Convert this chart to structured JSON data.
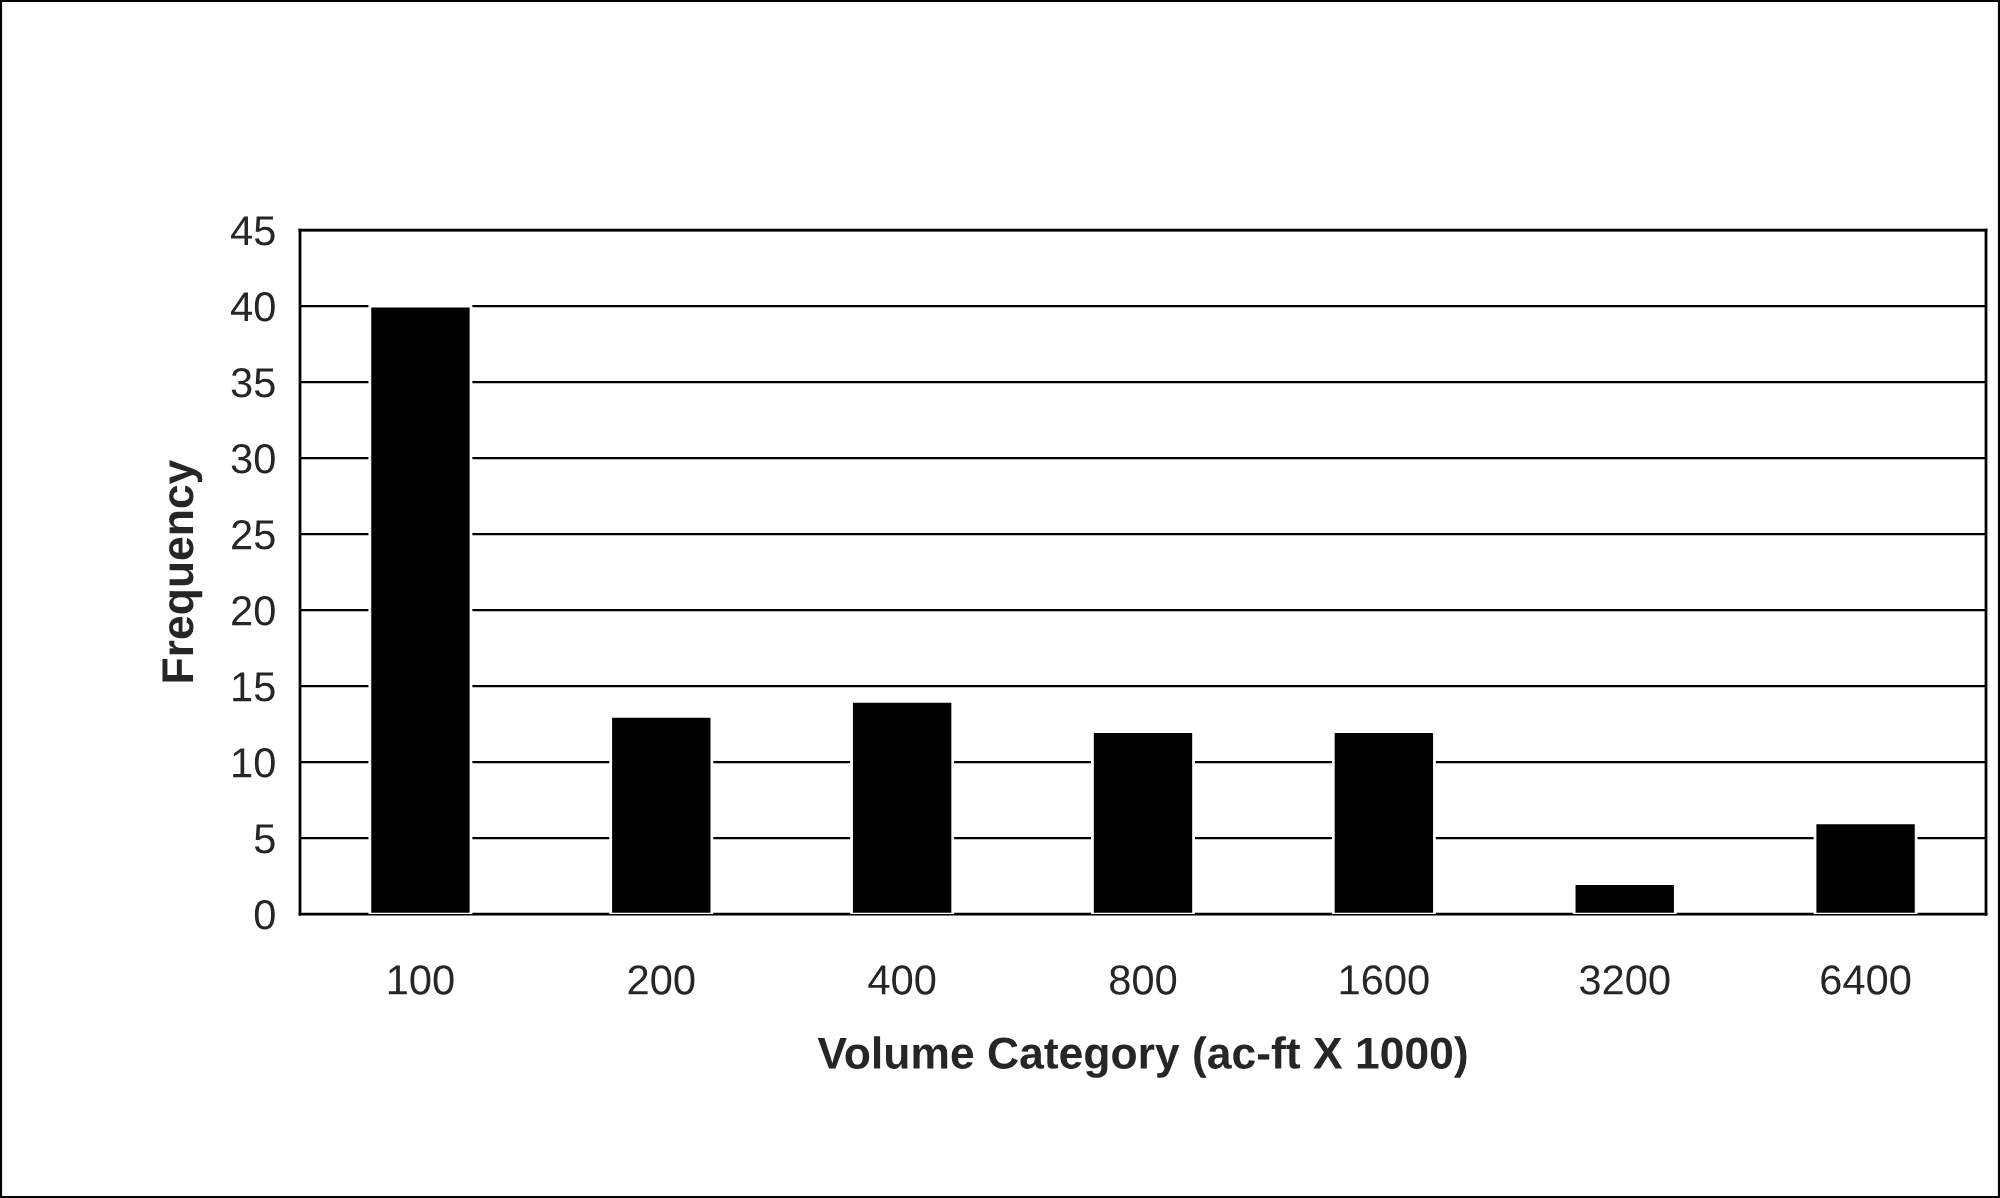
{
  "chart_data": {
    "type": "bar",
    "xlabel": "Volume Category (ac-ft X 1000)",
    "ylabel": "Frequency",
    "categories": [
      "100",
      "200",
      "400",
      "800",
      "1600",
      "3200",
      "6400"
    ],
    "values": [
      40,
      13,
      14,
      12,
      12,
      2,
      6
    ],
    "color": "#000000",
    "ylim": [
      0,
      45
    ],
    "yticks": [
      0,
      5,
      10,
      15,
      20,
      25,
      30,
      35,
      40,
      45
    ],
    "grid": "y",
    "legend": false
  }
}
